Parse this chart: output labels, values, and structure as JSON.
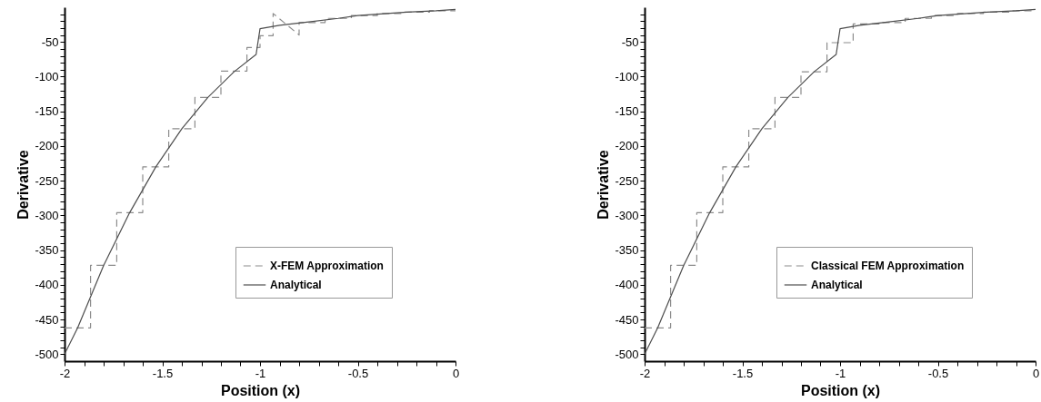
{
  "chart_data": [
    {
      "type": "line",
      "xlabel": "Position (x)",
      "ylabel": "Derivative",
      "xlim": [
        -2,
        0
      ],
      "ylim": [
        -510,
        0
      ],
      "xticks": [
        -2,
        {
          "value": -1.9,
          "label": null
        },
        {
          "value": -1.8,
          "label": null
        },
        {
          "value": -1.7,
          "label": null
        },
        {
          "value": -1.6,
          "label": null
        },
        -1.5,
        {
          "value": -1.4,
          "label": null
        },
        {
          "value": -1.3,
          "label": null
        },
        {
          "value": -1.2,
          "label": null
        },
        {
          "value": -1.1,
          "label": null
        },
        -1,
        {
          "value": -0.9,
          "label": null
        },
        {
          "value": -0.8,
          "label": null
        },
        {
          "value": -0.7,
          "label": null
        },
        {
          "value": -0.6,
          "label": null
        },
        -0.5,
        {
          "value": -0.4,
          "label": null
        },
        {
          "value": -0.3,
          "label": null
        },
        {
          "value": -0.2,
          "label": null
        },
        {
          "value": -0.1,
          "label": null
        },
        0
      ],
      "yticks": [
        -500,
        {
          "value": -490,
          "label": null
        },
        {
          "value": -480,
          "label": null
        },
        {
          "value": -470,
          "label": null
        },
        {
          "value": -460,
          "label": null
        },
        -450,
        {
          "value": -440,
          "label": null
        },
        {
          "value": -430,
          "label": null
        },
        {
          "value": -420,
          "label": null
        },
        {
          "value": -410,
          "label": null
        },
        -400,
        {
          "value": -390,
          "label": null
        },
        {
          "value": -380,
          "label": null
        },
        {
          "value": -370,
          "label": null
        },
        {
          "value": -360,
          "label": null
        },
        -350,
        {
          "value": -340,
          "label": null
        },
        {
          "value": -330,
          "label": null
        },
        {
          "value": -320,
          "label": null
        },
        {
          "value": -310,
          "label": null
        },
        -300,
        {
          "value": -290,
          "label": null
        },
        {
          "value": -280,
          "label": null
        },
        {
          "value": -270,
          "label": null
        },
        {
          "value": -260,
          "label": null
        },
        -250,
        {
          "value": -240,
          "label": null
        },
        {
          "value": -230,
          "label": null
        },
        {
          "value": -220,
          "label": null
        },
        {
          "value": -210,
          "label": null
        },
        -200,
        {
          "value": -190,
          "label": null
        },
        {
          "value": -180,
          "label": null
        },
        {
          "value": -170,
          "label": null
        },
        {
          "value": -160,
          "label": null
        },
        -150,
        {
          "value": -140,
          "label": null
        },
        {
          "value": -130,
          "label": null
        },
        {
          "value": -120,
          "label": null
        },
        {
          "value": -110,
          "label": null
        },
        -100,
        {
          "value": -90,
          "label": null
        },
        {
          "value": -80,
          "label": null
        },
        {
          "value": -70,
          "label": null
        },
        {
          "value": -60,
          "label": null
        },
        -50,
        {
          "value": -40,
          "label": null
        },
        {
          "value": -30,
          "label": null
        },
        {
          "value": -20,
          "label": null
        },
        {
          "value": -10,
          "label": null
        }
      ],
      "grid": false,
      "legend": "bottom right",
      "marker": "none",
      "series": [
        {
          "name": "X-FEM Approximation",
          "color": "#8c8c8c",
          "line_style": "dashed",
          "x": [
            -2,
            -1.867,
            -1.867,
            -1.733,
            -1.733,
            -1.6,
            -1.6,
            -1.467,
            -1.467,
            -1.333,
            -1.333,
            -1.2,
            -1.2,
            -1.067,
            -1.067,
            -1,
            -1,
            -0.933,
            -0.933,
            -0.8,
            -0.8,
            -0.667,
            -0.667,
            -0.533,
            -0.533,
            -0.4,
            -0.4,
            -0.267,
            -0.267,
            -0.133,
            -0.133,
            0
          ],
          "values": [
            -462,
            -462,
            -372,
            -372,
            -296,
            -296,
            -230,
            -230,
            -175,
            -175,
            -130,
            -130,
            -92,
            -92,
            -58,
            -58,
            -41,
            -41,
            -9,
            -40,
            -22,
            -22,
            -16,
            -16,
            -12,
            -12,
            -9,
            -9,
            -7,
            -7,
            -5,
            -5
          ]
        },
        {
          "name": "Analytical",
          "color": "#4d4d4d",
          "line_style": "solid",
          "x": [
            -2,
            -1.933,
            -1.8,
            -1.667,
            -1.533,
            -1.4,
            -1.267,
            -1.133,
            -1.02,
            -1,
            -0.9,
            -0.75,
            -0.6,
            -0.5,
            -0.4,
            -0.25,
            -0.1,
            0
          ],
          "values": [
            -500,
            -462,
            -372,
            -296,
            -230,
            -175,
            -130,
            -93,
            -68,
            -31,
            -26,
            -21,
            -16,
            -12,
            -10,
            -7,
            -5,
            -3
          ]
        }
      ]
    },
    {
      "type": "line",
      "xlabel": "Position (x)",
      "ylabel": "Derivative",
      "xlim": [
        -2,
        0
      ],
      "ylim": [
        -510,
        0
      ],
      "xticks": [
        -2,
        {
          "value": -1.9,
          "label": null
        },
        {
          "value": -1.8,
          "label": null
        },
        {
          "value": -1.7,
          "label": null
        },
        {
          "value": -1.6,
          "label": null
        },
        -1.5,
        {
          "value": -1.4,
          "label": null
        },
        {
          "value": -1.3,
          "label": null
        },
        {
          "value": -1.2,
          "label": null
        },
        {
          "value": -1.1,
          "label": null
        },
        -1,
        {
          "value": -0.9,
          "label": null
        },
        {
          "value": -0.8,
          "label": null
        },
        {
          "value": -0.7,
          "label": null
        },
        {
          "value": -0.6,
          "label": null
        },
        -0.5,
        {
          "value": -0.4,
          "label": null
        },
        {
          "value": -0.3,
          "label": null
        },
        {
          "value": -0.2,
          "label": null
        },
        {
          "value": -0.1,
          "label": null
        },
        0
      ],
      "yticks": [
        -500,
        {
          "value": -490,
          "label": null
        },
        {
          "value": -480,
          "label": null
        },
        {
          "value": -470,
          "label": null
        },
        {
          "value": -460,
          "label": null
        },
        -450,
        {
          "value": -440,
          "label": null
        },
        {
          "value": -430,
          "label": null
        },
        {
          "value": -420,
          "label": null
        },
        {
          "value": -410,
          "label": null
        },
        -400,
        {
          "value": -390,
          "label": null
        },
        {
          "value": -380,
          "label": null
        },
        {
          "value": -370,
          "label": null
        },
        {
          "value": -360,
          "label": null
        },
        -350,
        {
          "value": -340,
          "label": null
        },
        {
          "value": -330,
          "label": null
        },
        {
          "value": -320,
          "label": null
        },
        {
          "value": -310,
          "label": null
        },
        -300,
        {
          "value": -290,
          "label": null
        },
        {
          "value": -280,
          "label": null
        },
        {
          "value": -270,
          "label": null
        },
        {
          "value": -260,
          "label": null
        },
        -250,
        {
          "value": -240,
          "label": null
        },
        {
          "value": -230,
          "label": null
        },
        {
          "value": -220,
          "label": null
        },
        {
          "value": -210,
          "label": null
        },
        -200,
        {
          "value": -190,
          "label": null
        },
        {
          "value": -180,
          "label": null
        },
        {
          "value": -170,
          "label": null
        },
        {
          "value": -160,
          "label": null
        },
        -150,
        {
          "value": -140,
          "label": null
        },
        {
          "value": -130,
          "label": null
        },
        {
          "value": -120,
          "label": null
        },
        {
          "value": -110,
          "label": null
        },
        -100,
        {
          "value": -90,
          "label": null
        },
        {
          "value": -80,
          "label": null
        },
        {
          "value": -70,
          "label": null
        },
        {
          "value": -60,
          "label": null
        },
        -50,
        {
          "value": -40,
          "label": null
        },
        {
          "value": -30,
          "label": null
        },
        {
          "value": -20,
          "label": null
        },
        {
          "value": -10,
          "label": null
        }
      ],
      "grid": false,
      "legend": "bottom right",
      "marker": "none",
      "series": [
        {
          "name": "Classical FEM Approximation",
          "color": "#8c8c8c",
          "line_style": "dashed",
          "x": [
            -2,
            -1.867,
            -1.867,
            -1.733,
            -1.733,
            -1.6,
            -1.6,
            -1.467,
            -1.467,
            -1.333,
            -1.333,
            -1.2,
            -1.2,
            -1.067,
            -1.067,
            -0.933,
            -0.933,
            -0.8,
            -0.8,
            -0.667,
            -0.667,
            -0.533,
            -0.533,
            -0.4,
            -0.4,
            -0.267,
            -0.267,
            -0.133,
            -0.133,
            0
          ],
          "values": [
            -462,
            -462,
            -372,
            -372,
            -296,
            -296,
            -230,
            -230,
            -175,
            -175,
            -130,
            -130,
            -93,
            -93,
            -51,
            -51,
            -24,
            -24,
            -22,
            -22,
            -16,
            -16,
            -12,
            -12,
            -9,
            -9,
            -7,
            -7,
            -5,
            -5
          ]
        },
        {
          "name": "Analytical",
          "color": "#4d4d4d",
          "line_style": "solid",
          "x": [
            -2,
            -1.933,
            -1.8,
            -1.667,
            -1.533,
            -1.4,
            -1.267,
            -1.133,
            -1.02,
            -1,
            -0.9,
            -0.75,
            -0.6,
            -0.5,
            -0.4,
            -0.25,
            -0.1,
            0
          ],
          "values": [
            -500,
            -462,
            -372,
            -296,
            -230,
            -175,
            -130,
            -93,
            -68,
            -31,
            -26,
            -21,
            -16,
            -12,
            -10,
            -7,
            -5,
            -3
          ]
        }
      ]
    }
  ]
}
